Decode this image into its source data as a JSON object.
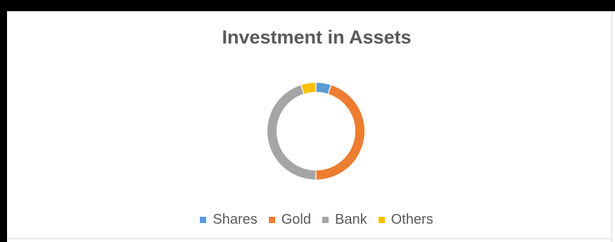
{
  "chart_data": {
    "type": "pie",
    "style": "doughnut",
    "title": "Investment in Assets",
    "categories": [
      "Shares",
      "Gold",
      "Bank",
      "Others"
    ],
    "values": [
      5,
      45,
      45,
      5
    ],
    "unit": "percent",
    "colors": [
      "#5b9bd5",
      "#ed7d31",
      "#a5a5a5",
      "#ffc000"
    ],
    "legend_position": "bottom",
    "start_angle_deg": 0,
    "direction": "clockwise"
  }
}
